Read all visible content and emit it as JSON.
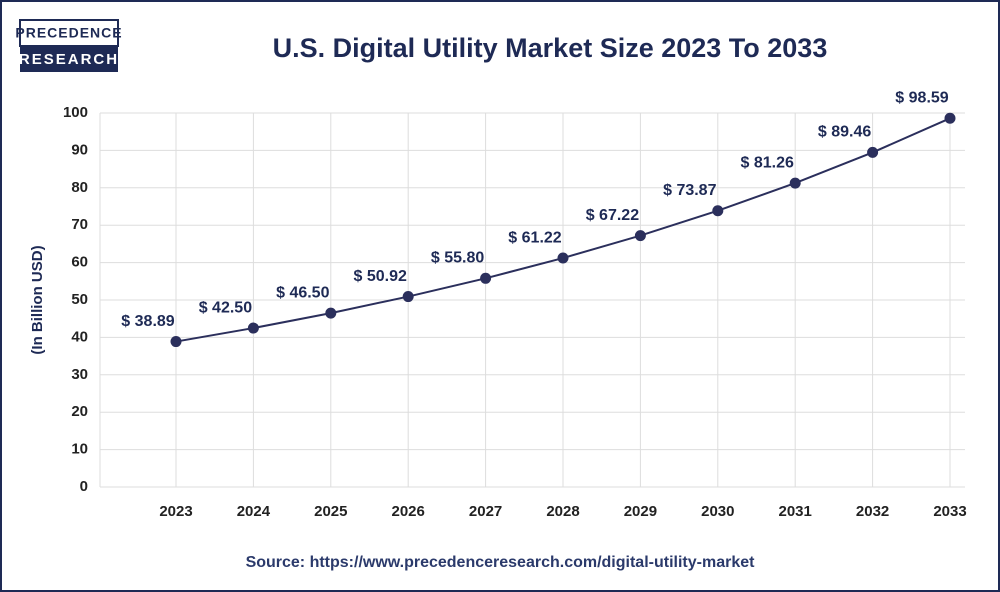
{
  "logo": {
    "line1": "PRECEDENCE",
    "line2": "RESEARCH"
  },
  "chart_data": {
    "type": "line",
    "title": "U.S. Digital Utility Market Size 2023 To 2033",
    "y_label": "(In Billion USD)",
    "source": "Source: https://www.precedenceresearch.com/digital-utility-market",
    "categories": [
      "2023",
      "2024",
      "2025",
      "2026",
      "2027",
      "2028",
      "2029",
      "2030",
      "2031",
      "2032",
      "2033"
    ],
    "values": [
      38.89,
      42.5,
      46.5,
      50.92,
      55.8,
      61.22,
      67.22,
      73.87,
      81.26,
      89.46,
      98.59
    ],
    "value_labels": [
      "$ 38.89",
      "$ 42.50",
      "$ 46.50",
      "$ 50.92",
      "$ 55.80",
      "$ 61.22",
      "$ 67.22",
      "$ 73.87",
      "$ 81.26",
      "$ 89.46",
      "$ 98.59"
    ],
    "color": "#2b2f5c",
    "ylim": [
      0,
      100
    ],
    "yticks": [
      0,
      10,
      20,
      30,
      40,
      50,
      60,
      70,
      80,
      90,
      100
    ],
    "grid": true
  }
}
